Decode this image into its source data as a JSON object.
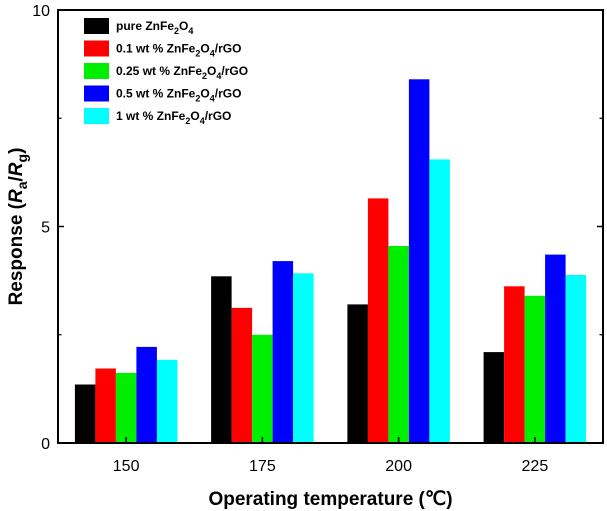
{
  "chart_data": {
    "type": "bar",
    "categories": [
      "150",
      "175",
      "200",
      "225"
    ],
    "series": [
      {
        "name": "pure ZnFe2O4",
        "color": "#000000",
        "values": [
          1.35,
          3.85,
          3.2,
          2.1
        ],
        "legend_parts": [
          [
            "pure ZnFe",
            false
          ],
          [
            "2",
            true
          ],
          [
            "O",
            false
          ],
          [
            "4",
            true
          ]
        ]
      },
      {
        "name": "0.1 wt % ZnFe2O4/rGO",
        "color": "#ff0000",
        "values": [
          1.72,
          3.12,
          5.65,
          3.62
        ],
        "legend_parts": [
          [
            "0.1 wt % ZnFe",
            false
          ],
          [
            "2",
            true
          ],
          [
            "O",
            false
          ],
          [
            "4",
            true
          ],
          [
            "/rGO",
            false
          ]
        ]
      },
      {
        "name": "0.25 wt % ZnFe2O4/rGO",
        "color": "#00ee00",
        "values": [
          1.62,
          2.5,
          4.55,
          3.4
        ],
        "legend_parts": [
          [
            "0.25 wt % ZnFe",
            false
          ],
          [
            "2",
            true
          ],
          [
            "O",
            false
          ],
          [
            "4",
            true
          ],
          [
            "/rGO",
            false
          ]
        ]
      },
      {
        "name": "0.5 wt % ZnFe2O4/rGO",
        "color": "#0000ff",
        "values": [
          2.22,
          4.2,
          8.4,
          4.35
        ],
        "legend_parts": [
          [
            "0.5 wt % ZnFe",
            false
          ],
          [
            "2",
            true
          ],
          [
            "O",
            false
          ],
          [
            "4",
            true
          ],
          [
            "/rGO",
            false
          ]
        ]
      },
      {
        "name": "1 wt % ZnFe2O4/rGO",
        "color": "#00ffff",
        "values": [
          1.92,
          3.92,
          6.55,
          3.88
        ],
        "legend_parts": [
          [
            "1 wt % ZnFe",
            false
          ],
          [
            "2",
            true
          ],
          [
            "O",
            false
          ],
          [
            "4",
            true
          ],
          [
            "/rGO",
            false
          ]
        ]
      }
    ],
    "title": "",
    "xlabel": "Operating temperature (℃)",
    "ylabel": "Response (Ra/Rg)",
    "ylabel_parts": [
      [
        "Response (",
        false
      ],
      [
        "R",
        true
      ],
      [
        "a",
        "sub"
      ],
      [
        "/",
        false
      ],
      [
        "R",
        true
      ],
      [
        "g",
        "sub"
      ],
      [
        ")",
        false
      ]
    ],
    "ylim": [
      0,
      10
    ],
    "yticks": [
      "0",
      "5",
      "10"
    ],
    "ytick_values": [
      0,
      5,
      10
    ],
    "grid": false,
    "legend_position": "top-left"
  }
}
